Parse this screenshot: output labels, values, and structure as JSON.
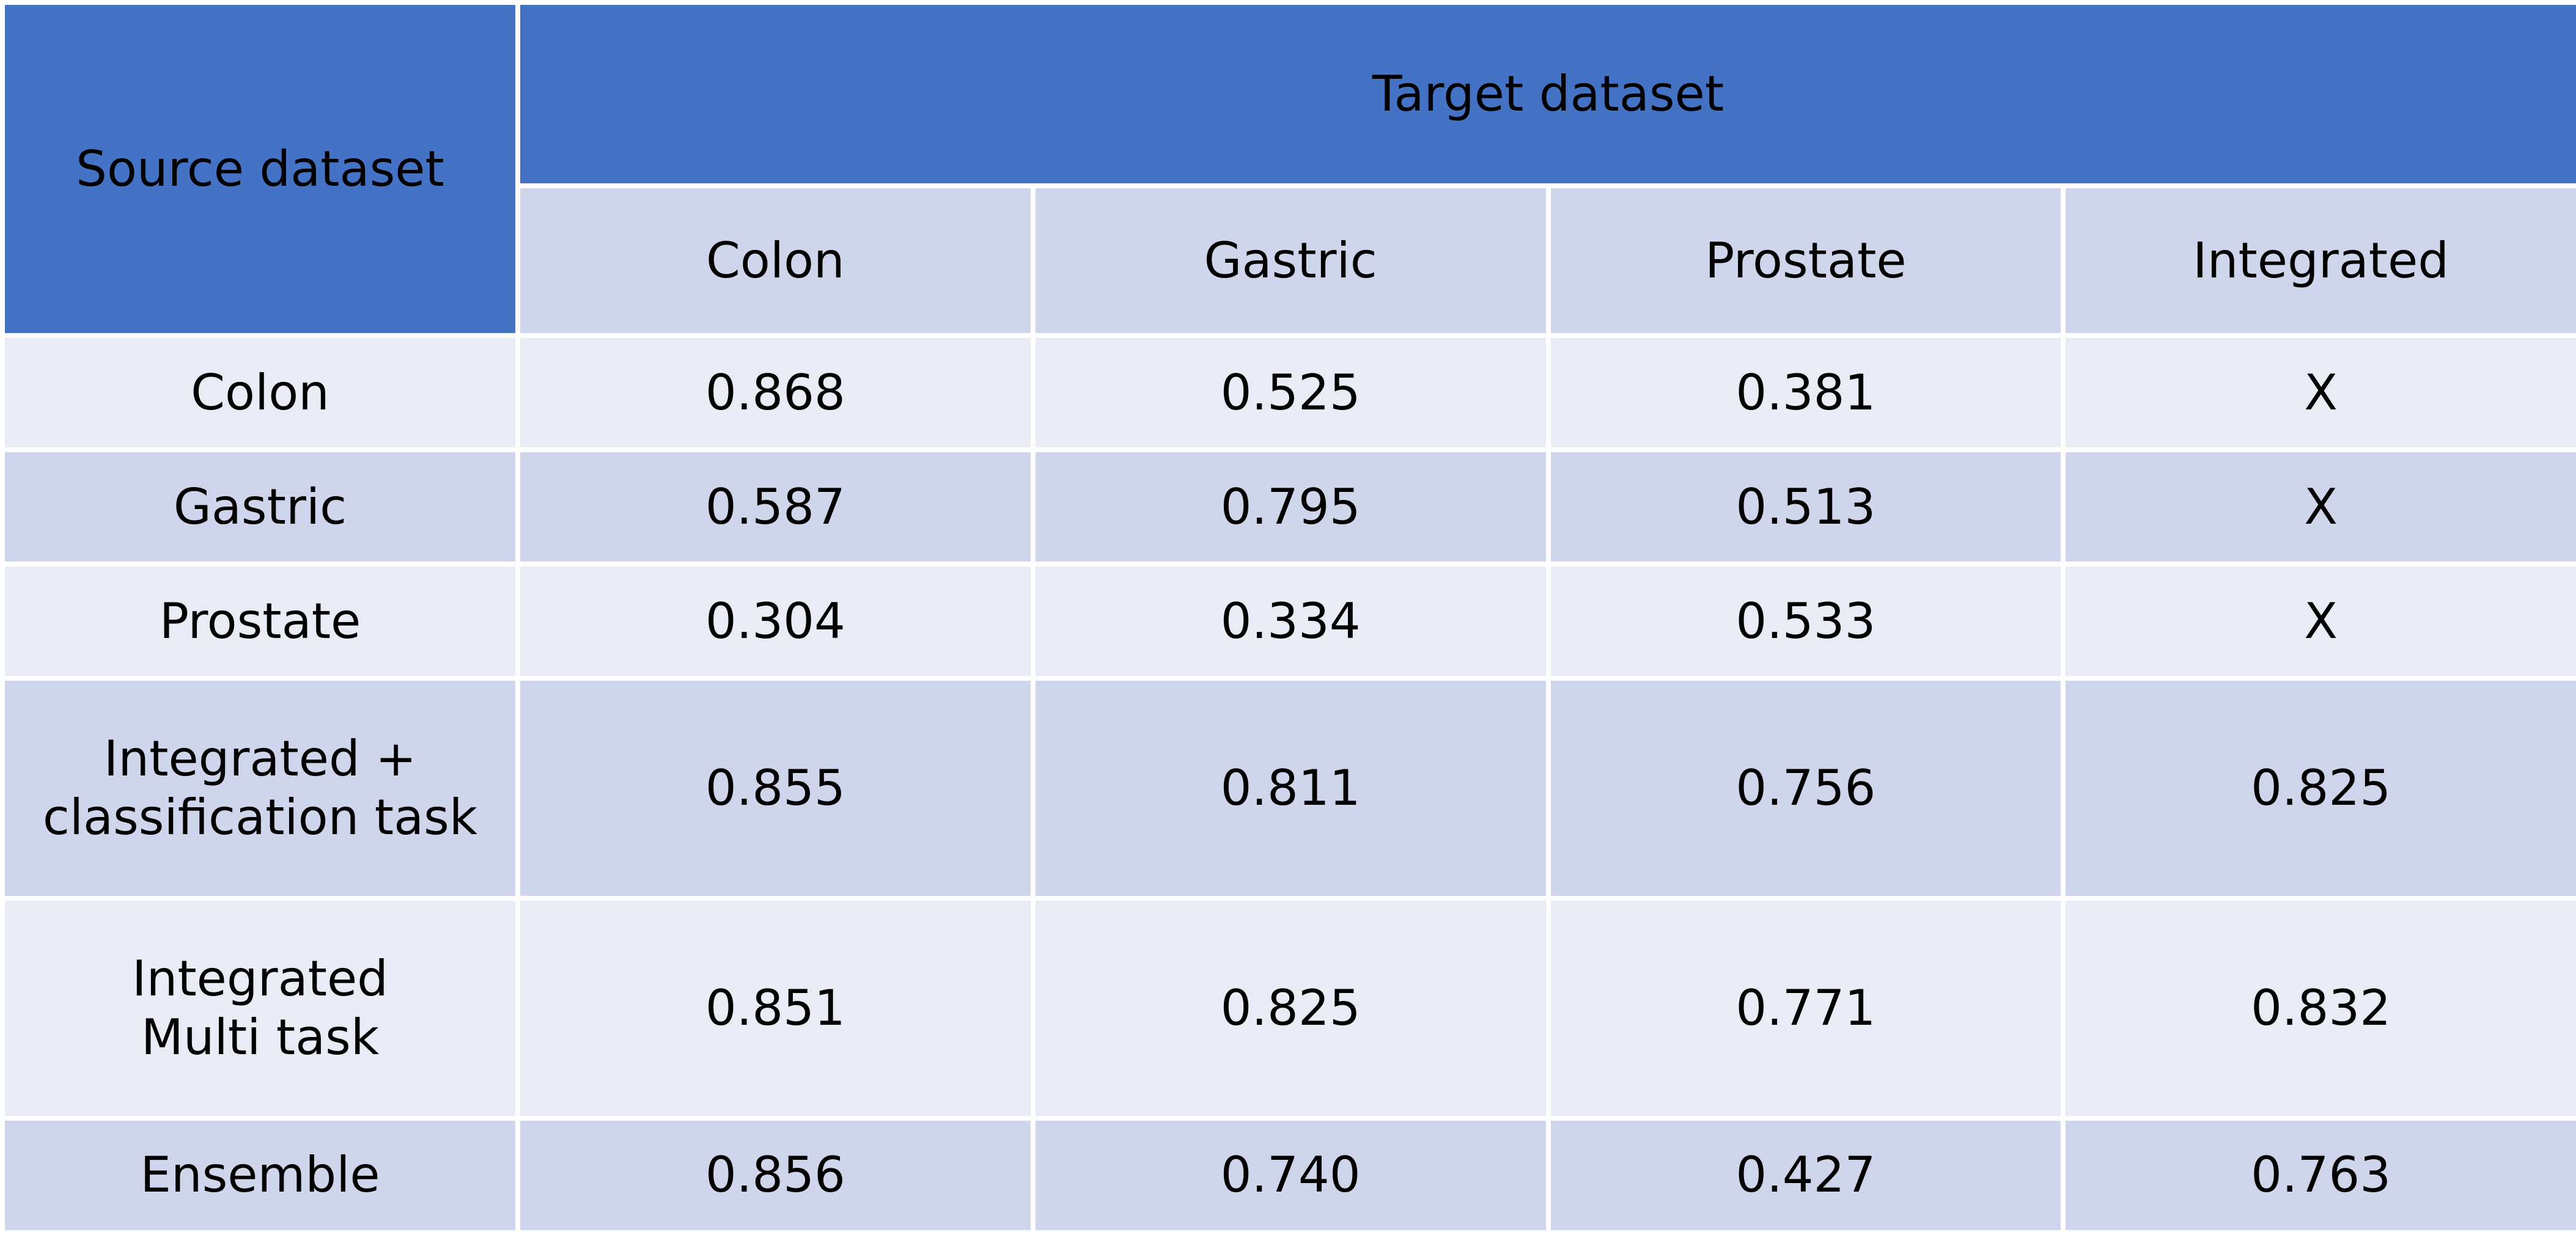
{
  "table": {
    "source_header": "Source dataset",
    "target_header": "Target dataset",
    "target_columns": [
      "Colon",
      "Gastric",
      "Prostate",
      "Integrated"
    ],
    "rows": [
      {
        "source": [
          "Colon"
        ],
        "values": [
          "0.868",
          "0.525",
          "0.381",
          "X"
        ]
      },
      {
        "source": [
          "Gastric"
        ],
        "values": [
          "0.587",
          "0.795",
          "0.513",
          "X"
        ]
      },
      {
        "source": [
          "Prostate"
        ],
        "values": [
          "0.304",
          "0.334",
          "0.533",
          "X"
        ]
      },
      {
        "source": [
          "Integrated +",
          "classification task"
        ],
        "values": [
          "0.855",
          "0.811",
          "0.756",
          "0.825"
        ]
      },
      {
        "source": [
          "Integrated",
          "Multi task"
        ],
        "values": [
          "0.851",
          "0.825",
          "0.771",
          "0.832"
        ]
      },
      {
        "source": [
          "Ensemble"
        ],
        "values": [
          "0.856",
          "0.740",
          "0.427",
          "0.763"
        ]
      }
    ]
  },
  "colors": {
    "header_blue": "#4472c4",
    "row_dark": "#cfd5ea",
    "row_light": "#e9ebf5",
    "header_text": "#ffffff"
  }
}
